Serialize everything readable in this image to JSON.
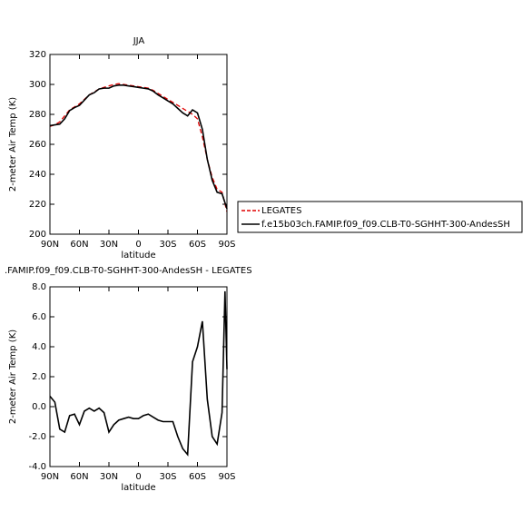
{
  "chart_data": [
    {
      "type": "line",
      "title": "JJA",
      "xlabel": "latitude",
      "ylabel": "2-meter Air Temp (K)",
      "x": [
        90,
        85,
        80,
        75,
        70,
        65,
        60,
        55,
        50,
        45,
        40,
        35,
        30,
        25,
        20,
        15,
        10,
        5,
        0,
        -5,
        -10,
        -15,
        -20,
        -25,
        -30,
        -35,
        -40,
        -45,
        -50,
        -55,
        -60,
        -65,
        -70,
        -75,
        -80,
        -85,
        -90
      ],
      "series": [
        {
          "name": "LEGATES",
          "color": "#e00000",
          "style": "dashed",
          "values": [
            272,
            273,
            275,
            279,
            283,
            285,
            287,
            290,
            293,
            295,
            297,
            298,
            299,
            300,
            300.5,
            300,
            299.5,
            299,
            298.5,
            298,
            297.5,
            296,
            294,
            292,
            290,
            288,
            286,
            284,
            282,
            280,
            277,
            265,
            250,
            238,
            230,
            228,
            215
          ]
        },
        {
          "name": "f.e15b03ch.FAMIP.f09_f09.CLB-T0-SGHHT-300-AndesSH",
          "color": "#000000",
          "style": "solid",
          "values": [
            272.5,
            273,
            273.5,
            277,
            282.5,
            284.5,
            286,
            289.5,
            293,
            294.5,
            297,
            297.5,
            297.5,
            299,
            299.5,
            299.5,
            299,
            298.5,
            298,
            297.5,
            297,
            295.5,
            293,
            291,
            289,
            287,
            284,
            281,
            279,
            283,
            281,
            270,
            250,
            236,
            228,
            227,
            217
          ]
        }
      ],
      "xlim": [
        90,
        -90
      ],
      "xticks": [
        {
          "value": 90,
          "label": "90N"
        },
        {
          "value": 60,
          "label": "60N"
        },
        {
          "value": 30,
          "label": "30N"
        },
        0,
        {
          "value": -30,
          "label": "30S"
        },
        {
          "value": -60,
          "label": "60S"
        },
        {
          "value": -90,
          "label": "90S"
        }
      ],
      "ylim": [
        200,
        320
      ],
      "yticks": [
        200,
        220,
        240,
        260,
        280,
        300,
        320
      ],
      "legend": "right"
    },
    {
      "type": "line",
      "title": ".FAMIP.f09_f09.CLB-T0-SGHHT-300-AndesSH - LEGATES",
      "xlabel": "latitude",
      "ylabel": "2-meter Air Temp (K)",
      "x": [
        90,
        85,
        80,
        75,
        70,
        65,
        60,
        55,
        50,
        45,
        40,
        35,
        30,
        25,
        20,
        15,
        10,
        5,
        0,
        -5,
        -10,
        -15,
        -20,
        -25,
        -30,
        -35,
        -40,
        -45,
        -50,
        -55,
        -60,
        -65,
        -70,
        -75,
        -80,
        -85,
        -88,
        -90
      ],
      "series": [
        {
          "color": "#000000",
          "style": "solid",
          "values": [
            0.7,
            0.3,
            -1.5,
            -1.7,
            -0.6,
            -0.5,
            -1.2,
            -0.3,
            -0.1,
            -0.3,
            -0.1,
            -0.4,
            -1.7,
            -1.2,
            -0.9,
            -0.8,
            -0.7,
            -0.8,
            -0.8,
            -0.6,
            -0.5,
            -0.7,
            -0.9,
            -1.0,
            -1.0,
            -1.0,
            -2.0,
            -2.8,
            -3.2,
            3.0,
            4.0,
            5.7,
            0.5,
            -2.0,
            -2.5,
            -0.4,
            7.7,
            2.5
          ]
        }
      ],
      "xlim": [
        90,
        -90
      ],
      "xticks": [
        {
          "value": 90,
          "label": "90N"
        },
        {
          "value": 60,
          "label": "60N"
        },
        {
          "value": 30,
          "label": "30N"
        },
        0,
        {
          "value": -30,
          "label": "30S"
        },
        {
          "value": -60,
          "label": "60S"
        },
        {
          "value": -90,
          "label": "90S"
        }
      ],
      "ylim": [
        -4,
        8
      ],
      "yticks": [
        {
          "value": -4,
          "label": "-4.0"
        },
        {
          "value": -2,
          "label": "-2.0"
        },
        {
          "value": 0,
          "label": "0.0"
        },
        {
          "value": 2,
          "label": "2.0"
        },
        {
          "value": 4,
          "label": "4.0"
        },
        {
          "value": 6,
          "label": "6.0"
        },
        {
          "value": 8,
          "label": "8.0"
        }
      ]
    }
  ]
}
